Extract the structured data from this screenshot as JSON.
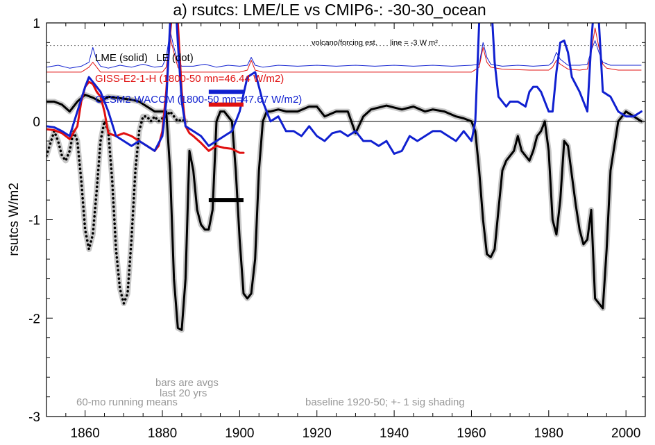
{
  "chart_data": {
    "type": "line",
    "title": "a) rsutcs: LME/LE vs CMIP6-: -30-30_ocean",
    "ylabel": "rsutcs W/m2",
    "xlim": [
      1850,
      2005
    ],
    "ylim": [
      -3,
      1
    ],
    "xticks": [
      1860,
      1880,
      1900,
      1920,
      1940,
      1960,
      1980,
      2000
    ],
    "yticks": [
      -3,
      -2,
      -1,
      0,
      1
    ],
    "grid": false,
    "legend_position": "top-left",
    "legend": {
      "lme_le": "LME (solid)   LE (dot)",
      "giss": "GISS-E2-1-H (1800-50 mn=46.44 W/m2)",
      "cesm": "CESM2-WACCM (1800-50 mn=47.67 W/m2)"
    },
    "annotations": {
      "volcano": "volcano/forcing est.      line = -3 W m²",
      "bars": "bars are avgs",
      "last20": "last 20 yrs",
      "running": "60-mo running means",
      "baseline": "baseline 1920-50; +- 1 sig shading"
    },
    "colors": {
      "lme": "#000000",
      "le": "#000000",
      "giss": "#e01010",
      "cesm": "#1020d0",
      "shade": "#c8c8c8",
      "note": "#999999"
    },
    "series": [
      {
        "name": "LME (solid)",
        "style": "solid",
        "x": [
          1850,
          1852,
          1854,
          1856,
          1858,
          1860,
          1862,
          1864,
          1866,
          1868,
          1870,
          1872,
          1874,
          1876,
          1878,
          1879,
          1880,
          1881,
          1882,
          1883,
          1884,
          1885,
          1886,
          1887,
          1888,
          1889,
          1890,
          1891,
          1892,
          1893,
          1894,
          1895,
          1896,
          1897,
          1898,
          1899,
          1900,
          1901,
          1902,
          1903,
          1904,
          1905,
          1906,
          1907,
          1908,
          1910,
          1912,
          1915,
          1918,
          1920,
          1922,
          1925,
          1928,
          1930,
          1932,
          1934,
          1936,
          1938,
          1940,
          1942,
          1945,
          1948,
          1950,
          1953,
          1956,
          1958,
          1960,
          1961,
          1962,
          1963,
          1964,
          1965,
          1966,
          1967,
          1968,
          1969,
          1970,
          1971,
          1972,
          1973,
          1974,
          1975,
          1976,
          1977,
          1978,
          1979,
          1980,
          1981,
          1982,
          1983,
          1984,
          1985,
          1986,
          1987,
          1988,
          1989,
          1990,
          1991,
          1992,
          1993,
          1994,
          1995,
          1996,
          1998,
          2000,
          2002,
          2004
        ],
        "y": [
          0.2,
          0.2,
          0.17,
          0.1,
          0.2,
          0.27,
          0.24,
          0.2,
          0.25,
          0.24,
          0.23,
          0.22,
          0.2,
          0.15,
          0.1,
          0.1,
          0.1,
          0.1,
          -0.5,
          -1.6,
          -2.1,
          -2.12,
          -1.6,
          -0.3,
          -0.5,
          -0.9,
          -1.05,
          -1.1,
          -1.1,
          -0.9,
          0.0,
          0.1,
          0.1,
          0.05,
          0.0,
          -0.5,
          -1.2,
          -1.75,
          -1.8,
          -1.75,
          -1.4,
          -0.5,
          0.0,
          0.1,
          0.1,
          0.12,
          0.1,
          0.1,
          0.15,
          0.15,
          0.05,
          0.1,
          0.1,
          -0.12,
          0.05,
          0.12,
          0.14,
          0.16,
          0.14,
          0.12,
          0.15,
          0.1,
          0.12,
          0.1,
          0.05,
          0.03,
          0.0,
          -0.1,
          -0.5,
          -1.0,
          -1.35,
          -1.38,
          -1.3,
          -0.9,
          -0.5,
          -0.4,
          -0.35,
          -0.3,
          -0.15,
          -0.3,
          -0.35,
          -0.4,
          -0.3,
          -0.15,
          -0.1,
          0.0,
          -0.3,
          -1.0,
          -1.15,
          -0.8,
          -0.2,
          -0.25,
          -0.55,
          -0.85,
          -1.1,
          -1.25,
          -1.2,
          -0.9,
          -1.8,
          -1.85,
          -1.9,
          -1.3,
          -0.5,
          0.0,
          0.1,
          0.05,
          0.0
        ]
      },
      {
        "name": "LE (dot)",
        "style": "dot",
        "x": [
          1850,
          1852,
          1853,
          1854,
          1855,
          1856,
          1857,
          1858,
          1859,
          1860,
          1861,
          1862,
          1863,
          1864,
          1865,
          1866,
          1867,
          1868,
          1869,
          1870,
          1871,
          1872,
          1873,
          1874,
          1875,
          1876,
          1877,
          1878,
          1879,
          1880,
          1881,
          1882,
          1883,
          1884,
          1885,
          1886
        ],
        "y": [
          -0.35,
          -0.1,
          -0.2,
          -0.35,
          -0.4,
          -0.3,
          -0.1,
          -0.2,
          -0.6,
          -1.1,
          -1.3,
          -1.15,
          -0.7,
          -0.2,
          0.0,
          -0.1,
          -0.6,
          -1.3,
          -1.7,
          -1.85,
          -1.75,
          -1.2,
          -0.5,
          -0.1,
          0.05,
          0.05,
          0.0,
          0.05,
          0.0,
          0.03,
          0.05,
          0.1,
          0.05,
          0.0,
          0.02,
          0.0
        ]
      },
      {
        "name": "GISS-E2-1-H (1800-50 mn=46.44 W/m2)",
        "style": "solid",
        "x": [
          1850,
          1852,
          1854,
          1856,
          1858,
          1859,
          1860,
          1861,
          1862,
          1863,
          1864,
          1865,
          1866,
          1868,
          1870,
          1872,
          1874,
          1876,
          1878,
          1879,
          1880,
          1881,
          1882,
          1883,
          1884,
          1885,
          1886,
          1887,
          1888,
          1890,
          1892,
          1894,
          1896,
          1898,
          1900,
          1901
        ],
        "y": [
          -0.08,
          -0.09,
          -0.12,
          -0.18,
          -0.05,
          0.2,
          0.35,
          0.4,
          0.38,
          0.3,
          0.25,
          0.1,
          -0.12,
          -0.15,
          -0.12,
          -0.15,
          -0.2,
          -0.25,
          -0.3,
          -0.25,
          -0.1,
          0.3,
          0.9,
          1.3,
          1.0,
          0.3,
          -0.05,
          -0.12,
          -0.15,
          -0.22,
          -0.3,
          -0.25,
          -0.27,
          -0.28,
          -0.32,
          -0.32
        ]
      },
      {
        "name": "CESM2-WACCM (1800-50 mn=47.67 W/m2)",
        "style": "solid",
        "x": [
          1850,
          1852,
          1854,
          1856,
          1858,
          1860,
          1861,
          1862,
          1864,
          1866,
          1868,
          1870,
          1872,
          1874,
          1876,
          1878,
          1880,
          1881,
          1882,
          1883,
          1884,
          1885,
          1886,
          1888,
          1890,
          1892,
          1894,
          1896,
          1898,
          1900,
          1902,
          1904,
          1906,
          1908,
          1910,
          1912,
          1914,
          1916,
          1918,
          1920,
          1922,
          1924,
          1926,
          1928,
          1930,
          1932,
          1934,
          1936,
          1938,
          1940,
          1942,
          1944,
          1946,
          1948,
          1950,
          1952,
          1954,
          1956,
          1958,
          1960,
          1961,
          1962,
          1963,
          1964,
          1965,
          1966,
          1967,
          1968,
          1969,
          1970,
          1972,
          1974,
          1975,
          1976,
          1977,
          1978,
          1980,
          1981,
          1982,
          1983,
          1984,
          1985,
          1986,
          1988,
          1990,
          1991,
          1992,
          1993,
          1994,
          1996,
          1998,
          2000,
          2002,
          2004
        ],
        "y": [
          -0.05,
          -0.06,
          -0.1,
          -0.15,
          0.1,
          0.35,
          0.45,
          0.4,
          0.3,
          0.1,
          -0.15,
          -0.2,
          -0.25,
          -0.2,
          -0.25,
          -0.3,
          -0.15,
          0.2,
          1.0,
          1.5,
          0.8,
          0.2,
          -0.05,
          -0.1,
          -0.15,
          -0.25,
          -0.2,
          -0.15,
          -0.1,
          0.1,
          0.45,
          0.5,
          0.2,
          0.0,
          0.05,
          -0.1,
          -0.1,
          -0.15,
          -0.05,
          -0.15,
          -0.2,
          -0.12,
          -0.1,
          -0.15,
          -0.1,
          -0.2,
          -0.2,
          -0.25,
          -0.2,
          -0.33,
          -0.3,
          -0.15,
          -0.2,
          -0.15,
          -0.1,
          -0.1,
          -0.15,
          -0.2,
          -0.1,
          -0.2,
          0.0,
          1.0,
          1.2,
          1.3,
          1.3,
          0.6,
          0.25,
          0.2,
          0.15,
          0.2,
          0.2,
          0.15,
          0.3,
          0.35,
          0.35,
          0.3,
          0.1,
          0.1,
          0.5,
          0.8,
          0.82,
          0.7,
          0.45,
          0.3,
          0.1,
          0.8,
          1.3,
          1.0,
          0.3,
          0.25,
          0.1,
          0.05,
          0.05,
          0.1
        ]
      }
    ],
    "thin_series": [
      {
        "name": "GISS forcing",
        "x": [
          1850,
          1855,
          1859,
          1861,
          1862,
          1863,
          1864,
          1866,
          1870,
          1875,
          1880,
          1881,
          1882,
          1883,
          1884,
          1885,
          1890,
          1900,
          1902,
          1903,
          1904,
          1906,
          1910,
          1920,
          1930,
          1940,
          1950,
          1960,
          1962,
          1963,
          1964,
          1965,
          1968,
          1975,
          1980,
          1981,
          1982,
          1983,
          1985,
          1988,
          1990,
          1991,
          1992,
          1993,
          1994,
          1995,
          1998,
          2004
        ],
        "y": [
          0.5,
          0.5,
          0.5,
          0.55,
          0.6,
          0.55,
          0.5,
          0.5,
          0.5,
          0.5,
          0.5,
          0.55,
          0.85,
          0.7,
          0.55,
          0.5,
          0.5,
          0.5,
          0.52,
          0.62,
          0.52,
          0.5,
          0.5,
          0.5,
          0.5,
          0.5,
          0.5,
          0.5,
          0.55,
          0.75,
          0.6,
          0.55,
          0.53,
          0.52,
          0.52,
          0.55,
          0.62,
          0.58,
          0.53,
          0.52,
          0.53,
          0.7,
          0.95,
          0.75,
          0.58,
          0.54,
          0.52,
          0.52
        ]
      },
      {
        "name": "CESM forcing",
        "x": [
          1850,
          1853,
          1856,
          1859,
          1861,
          1862,
          1863,
          1864,
          1866,
          1869,
          1872,
          1875,
          1878,
          1880,
          1881,
          1882,
          1883,
          1884,
          1885,
          1888,
          1891,
          1894,
          1897,
          1900,
          1902,
          1903,
          1904,
          1906,
          1910,
          1915,
          1920,
          1925,
          1930,
          1935,
          1940,
          1945,
          1950,
          1955,
          1960,
          1962,
          1963,
          1964,
          1965,
          1968,
          1972,
          1976,
          1980,
          1981,
          1982,
          1983,
          1985,
          1988,
          1990,
          1991,
          1992,
          1993,
          1994,
          1996,
          2000,
          2004
        ],
        "y": [
          0.55,
          0.57,
          0.54,
          0.56,
          0.6,
          0.75,
          0.62,
          0.56,
          0.54,
          0.57,
          0.55,
          0.58,
          0.55,
          0.56,
          0.65,
          0.92,
          0.75,
          0.6,
          0.56,
          0.56,
          0.58,
          0.55,
          0.57,
          0.56,
          0.57,
          0.65,
          0.57,
          0.55,
          0.57,
          0.56,
          0.57,
          0.56,
          0.57,
          0.56,
          0.57,
          0.56,
          0.57,
          0.56,
          0.57,
          0.58,
          0.8,
          0.65,
          0.58,
          0.56,
          0.57,
          0.56,
          0.57,
          0.6,
          0.7,
          0.63,
          0.57,
          0.57,
          0.58,
          0.72,
          0.82,
          0.7,
          0.6,
          0.57,
          0.57,
          0.57
        ]
      }
    ],
    "reference_lines": [
      {
        "name": "volcano-forcing-line",
        "y": 0.77,
        "style": "dotted"
      },
      {
        "name": "zero-line",
        "y": 0.0,
        "style": "solid"
      }
    ],
    "avg_bars": [
      {
        "name": "LME bar",
        "x": [
          1892,
          1901
        ],
        "y": -0.8,
        "color": "#000000"
      },
      {
        "name": "GISS bar",
        "x": [
          1892,
          1901
        ],
        "y": 0.17,
        "color": "#e01010"
      },
      {
        "name": "CESM bar",
        "x": [
          1892,
          1901
        ],
        "y": 0.3,
        "color": "#1020d0"
      }
    ]
  }
}
